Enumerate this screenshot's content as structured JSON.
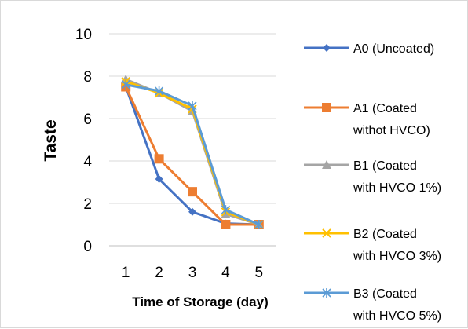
{
  "chart_data": {
    "type": "line",
    "title": "",
    "xlabel": "Time of Storage (day)",
    "ylabel": "Taste",
    "x": [
      1,
      2,
      3,
      4,
      5
    ],
    "xlim": [
      0.5,
      5.5
    ],
    "ylim": [
      0,
      10
    ],
    "yticks": [
      0,
      2,
      4,
      6,
      8,
      10
    ],
    "grid": true,
    "legend_position": "right",
    "series": [
      {
        "name": "A0 (Uncoated)",
        "values": [
          7.5,
          3.15,
          1.6,
          1.05,
          1.0
        ],
        "color": "#4472c4",
        "marker": "diamond"
      },
      {
        "name": "A1 (Coated withot HVCO)",
        "values": [
          7.5,
          4.1,
          2.55,
          1.0,
          1.0
        ],
        "color": "#ed7d31",
        "marker": "square"
      },
      {
        "name": "B1 (Coated with HVCO 1%)",
        "values": [
          7.85,
          7.2,
          6.35,
          1.5,
          1.0
        ],
        "color": "#a5a5a5",
        "marker": "triangle"
      },
      {
        "name": "B2 (Coated with HVCO 3%)",
        "values": [
          7.75,
          7.2,
          6.45,
          1.6,
          1.0
        ],
        "color": "#ffc000",
        "marker": "x"
      },
      {
        "name": "B3 (Coated with HVCO 5%)",
        "values": [
          7.6,
          7.3,
          6.6,
          1.7,
          1.0
        ],
        "color": "#5b9bd5",
        "marker": "star"
      }
    ]
  },
  "legend": {
    "items": [
      {
        "line1": "A0 (Uncoated)",
        "line2": ""
      },
      {
        "line1": "A1 (Coated",
        "line2": "withot HVCO)"
      },
      {
        "line1": "B1 (Coated",
        "line2": "with HVCO 1%)"
      },
      {
        "line1": "B2 (Coated",
        "line2": "with HVCO 3%)"
      },
      {
        "line1": "B3 (Coated",
        "line2": "with HVCO 5%)"
      }
    ]
  }
}
